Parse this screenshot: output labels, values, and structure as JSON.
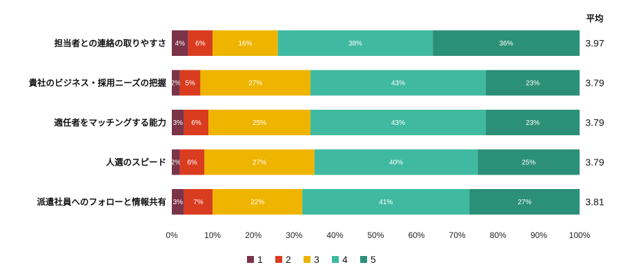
{
  "chart_data": {
    "type": "bar",
    "orientation": "horizontal",
    "stacked": true,
    "categories": [
      "担当者との連絡の取りやすさ",
      "貴社のビジネス・採用ニーズの把握",
      "適任者をマッチングする能力",
      "人選のスピード",
      "派遣社員へのフォローと情報共有"
    ],
    "series": [
      {
        "name": "1",
        "color": "#7b3347",
        "values": [
          4,
          2,
          3,
          2,
          3
        ],
        "labels": [
          "4%",
          "2%",
          "3%",
          "2%",
          "3%"
        ]
      },
      {
        "name": "2",
        "color": "#d93c1f",
        "values": [
          6,
          5,
          6,
          6,
          7
        ],
        "labels": [
          "6%",
          "5%",
          "6%",
          "6%",
          "7%"
        ]
      },
      {
        "name": "3",
        "color": "#eeb400",
        "values": [
          16,
          27,
          25,
          27,
          22
        ],
        "labels": [
          "16%",
          "27%",
          "25%",
          "27%",
          "22%"
        ]
      },
      {
        "name": "4",
        "color": "#3fbaa0",
        "values": [
          38,
          43,
          43,
          40,
          41
        ],
        "labels": [
          "38%",
          "43%",
          "43%",
          "40%",
          "41%"
        ]
      },
      {
        "name": "5",
        "color": "#2c8f78",
        "values": [
          36,
          23,
          23,
          25,
          27
        ],
        "labels": [
          "36%",
          "23%",
          "23%",
          "25%",
          "27%"
        ]
      }
    ],
    "xlim": [
      0,
      100
    ],
    "x_ticks": [
      "0%",
      "10%",
      "20%",
      "30%",
      "40%",
      "50%",
      "60%",
      "70%",
      "80%",
      "90%",
      "100%"
    ],
    "average_header": "平均",
    "averages": [
      "3.97",
      "3.79",
      "3.79",
      "3.79",
      "3.81"
    ],
    "legend_position": "bottom-center"
  }
}
